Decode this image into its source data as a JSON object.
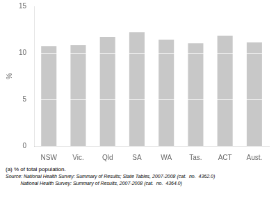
{
  "chart_data": {
    "type": "bar",
    "ylabel": "%",
    "annotations": [
      "(a) % of total population.",
      "Source: National Health Survey: Summary of Results; State Tables, 2007-2008 (cat.  no.  4362.0)",
      "           National Health Survey: Summary of Results, 2007-2008 (cat.  no.  4364.0)"
    ],
    "categories": [
      "NSW",
      "Vic.",
      "Qld",
      "SA",
      "WA",
      "Tas.",
      "ACT",
      "Aust."
    ],
    "series": [
      {
        "color": "#c8c8c8",
        "values": [
          5.0,
          5.0,
          5.0,
          5.0,
          5.0,
          5.0,
          5.0,
          5.0
        ]
      },
      {
        "color": "#c8c8c8",
        "values": [
          5.0,
          5.0,
          5.0,
          5.0,
          5.0,
          5.0,
          5.0,
          5.0
        ]
      },
      {
        "color": "#c8c8c8",
        "values": [
          0.8,
          0.9,
          1.8,
          2.3,
          1.5,
          1.1,
          1.9,
          1.2
        ]
      }
    ],
    "stacked": true,
    "ylim": [
      0,
      15
    ],
    "yticks": [
      0,
      5,
      10,
      15
    ],
    "grid": false
  }
}
